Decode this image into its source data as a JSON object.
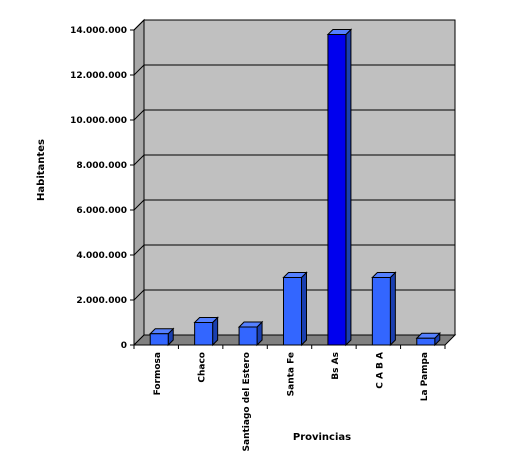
{
  "chart_data": {
    "type": "bar",
    "title": "",
    "xlabel": "Provincias",
    "ylabel": "Habitantes",
    "categories": [
      "Formosa",
      "Chaco",
      "Santiago del Estero",
      "Santa Fe",
      "Bs As",
      "C A B A",
      "La Pampa"
    ],
    "values": [
      500000,
      1000000,
      800000,
      3000000,
      13800000,
      3000000,
      300000
    ],
    "ylim": [
      0,
      14000000
    ],
    "yticks": [
      0,
      2000000,
      4000000,
      6000000,
      8000000,
      10000000,
      12000000,
      14000000
    ],
    "ytick_labels": [
      "0",
      "2.000.000",
      "4.000.000",
      "6.000.000",
      "8.000.000",
      "10.000.000",
      "12.000.000",
      "14.000.000"
    ],
    "grid": true,
    "legend": "none",
    "colors": {
      "bar": "#3366ff",
      "bar_highlight": "#0000ee",
      "wall": "#c0c0c0",
      "floor": "#808080"
    }
  }
}
